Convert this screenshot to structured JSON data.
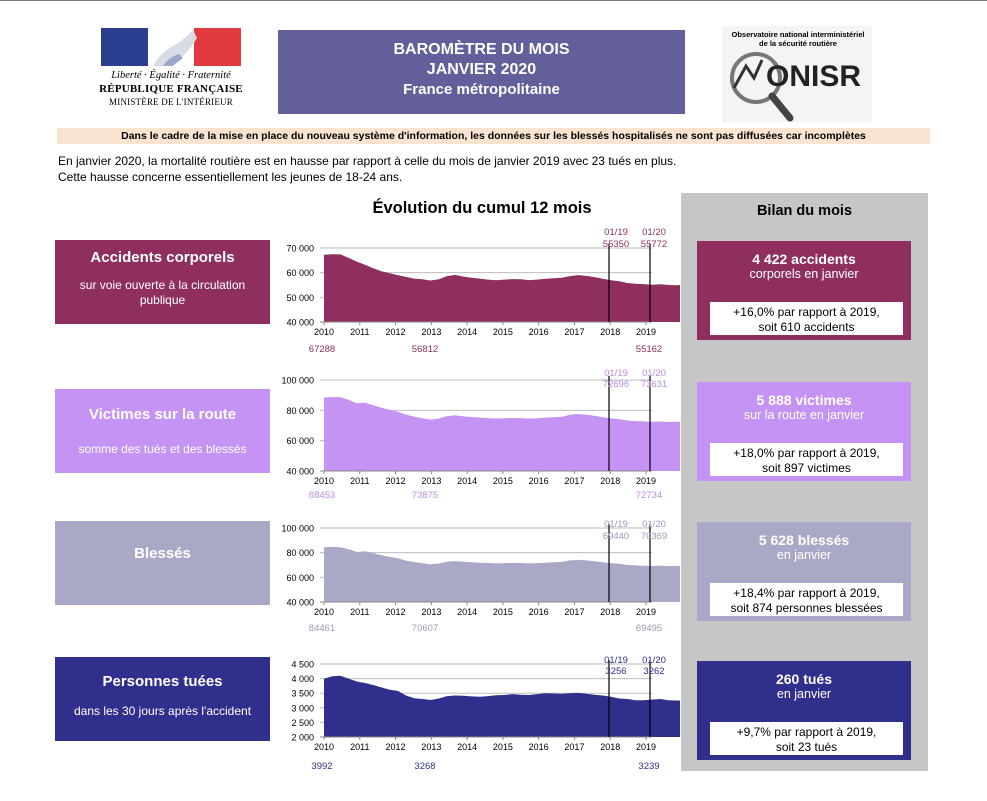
{
  "header": {
    "rf_motto": "Liberté · Égalité · Fraternité",
    "rf_name": "RÉPUBLIQUE FRANÇAISE",
    "rf_ministry": "MINISTÈRE DE L'INTÉRIEUR",
    "title_line1": "BAROMÈTRE DU MOIS",
    "title_line2": "JANVIER 2020",
    "title_line3": "France métropolitaine",
    "onisr_line1": "Observatoire national interministériel",
    "onisr_line2": "de la sécurité routière",
    "onisr_logo_text": "ONISR"
  },
  "notice": "Dans le cadre de la mise en place du nouveau système d'information, les données sur les blessés hospitalisés ne sont pas diffusées car incomplètes",
  "intro_line1": "En janvier 2020, la mortalité routière est en hausse par rapport à celle du mois de janvier 2019 avec 23 tués en plus.",
  "intro_line2": "Cette hausse concerne essentiellement les jeunes de 18-24 ans.",
  "section_title": "Évolution du cumul 12 mois",
  "bilan_title": "Bilan du mois",
  "categories": [
    {
      "name": "Accidents corporels",
      "sub": "sur voie ouverte à la circulation publique",
      "color": "#8e2f5f",
      "result_big": "4 422 accidents",
      "result_sub": "corporels en janvier",
      "comp_line1": "+16,0% par rapport à 2019,",
      "comp_line2": "soit 610 accidents"
    },
    {
      "name": "Victimes sur la route",
      "sub": "somme des tués et des blessés",
      "color": "#c593f4",
      "result_big": "5 888 victimes",
      "result_sub": "sur la route en janvier",
      "comp_line1": "+18,0% par rapport à 2019,",
      "comp_line2": "soit 897 victimes"
    },
    {
      "name": "Blessés",
      "sub": "",
      "color": "#a9a9c7",
      "result_big": "5 628 blessés",
      "result_sub": "en janvier",
      "comp_line1": "+18,4% par rapport à 2019,",
      "comp_line2": "soit 874 personnes blessées"
    },
    {
      "name": "Personnes tuées",
      "sub": "dans les 30 jours après l'accident",
      "color": "#302f8c",
      "result_big": "260 tués",
      "result_sub": "en janvier",
      "comp_line1": "+9,7% par rapport à 2019,",
      "comp_line2": "soit 23 tués"
    }
  ],
  "chart_data": [
    {
      "type": "area",
      "name": "Accidents corporels",
      "x_start": 2010.0,
      "x_end": 2020.083,
      "xticks": [
        "2010",
        "2011",
        "2012",
        "2013",
        "2014",
        "2015",
        "2016",
        "2017",
        "2018",
        "2019"
      ],
      "ylim": [
        40000,
        70000
      ],
      "yticks": [
        "40 000",
        "50 000",
        "60 000",
        "70 000"
      ],
      "ytick_values": [
        40000,
        50000,
        60000,
        70000
      ],
      "values": [
        67288,
        67500,
        67400,
        66000,
        64500,
        63200,
        61800,
        60600,
        59800,
        59000,
        58300,
        57600,
        57300,
        56812,
        57300,
        58600,
        59100,
        58400,
        57900,
        57600,
        57200,
        56900,
        57200,
        57400,
        57300,
        57000,
        57200,
        57500,
        57700,
        57900,
        58600,
        59000,
        58700,
        58200,
        57500,
        56900,
        56500,
        55800,
        55500,
        55350,
        55100,
        55300,
        55000,
        54900,
        55162
      ],
      "marker1_label": "01/19",
      "marker1_value": "55350",
      "marker2_label": "01/20",
      "marker2_value": "55772",
      "start_value": "67288",
      "mid_value": "56812",
      "end_value": "55162",
      "color": "#8e2f5f",
      "label_color": "#8e2f5f"
    },
    {
      "type": "area",
      "name": "Victimes sur la route",
      "x_start": 2010.0,
      "x_end": 2020.083,
      "xticks": [
        "2010",
        "2011",
        "2012",
        "2013",
        "2014",
        "2015",
        "2016",
        "2017",
        "2018",
        "2019"
      ],
      "ylim": [
        40000,
        100000
      ],
      "yticks": [
        "40 000",
        "60 000",
        "80 000",
        "100 000"
      ],
      "ytick_values": [
        40000,
        60000,
        80000,
        100000
      ],
      "values": [
        88453,
        88800,
        88600,
        87000,
        84700,
        85000,
        83300,
        81700,
        80300,
        79100,
        77200,
        75900,
        74800,
        73875,
        74600,
        76200,
        76700,
        76000,
        75600,
        75200,
        74900,
        74600,
        74800,
        75000,
        74900,
        74600,
        74800,
        75200,
        75500,
        75800,
        77100,
        77600,
        77100,
        76400,
        75500,
        74700,
        74200,
        73300,
        72900,
        72696,
        72400,
        72700,
        72300,
        72400,
        72734
      ],
      "marker1_label": "01/19",
      "marker1_value": "72696",
      "marker2_label": "01/20",
      "marker2_value": "73631",
      "start_value": "88453",
      "mid_value": "73875",
      "end_value": "72734",
      "color": "#c593f4",
      "label_color": "#b98ee0"
    },
    {
      "type": "area",
      "name": "Blessés",
      "x_start": 2010.0,
      "x_end": 2020.083,
      "xticks": [
        "2010",
        "2011",
        "2012",
        "2013",
        "2014",
        "2015",
        "2016",
        "2017",
        "2018",
        "2019"
      ],
      "ylim": [
        40000,
        100000
      ],
      "yticks": [
        "40 000",
        "60 000",
        "80 000",
        "100 000"
      ],
      "ytick_values": [
        40000,
        60000,
        80000,
        100000
      ],
      "values": [
        84461,
        84700,
        84400,
        82700,
        80500,
        81200,
        79600,
        78000,
        76600,
        75400,
        73600,
        72400,
        71400,
        70607,
        71200,
        72700,
        73200,
        72600,
        72200,
        71900,
        71600,
        71300,
        71500,
        71700,
        71600,
        71300,
        71500,
        71900,
        72200,
        72500,
        73700,
        74100,
        73700,
        73100,
        72200,
        71500,
        71000,
        70100,
        69700,
        69440,
        69200,
        69500,
        69100,
        69200,
        69495
      ],
      "marker1_label": "01/19",
      "marker1_value": "69440",
      "marker2_label": "01/20",
      "marker2_value": "70369",
      "start_value": "84461",
      "mid_value": "70607",
      "end_value": "69495",
      "color": "#a9a9c7",
      "label_color": "#9a9ab8"
    },
    {
      "type": "area",
      "name": "Personnes tuées",
      "x_start": 2010.0,
      "x_end": 2020.083,
      "xticks": [
        "2010",
        "2011",
        "2012",
        "2013",
        "2014",
        "2015",
        "2016",
        "2017",
        "2018",
        "2019"
      ],
      "ylim": [
        2000,
        4500
      ],
      "yticks": [
        "2 000",
        "2 500",
        "3 000",
        "3 500",
        "4 000",
        "4 500"
      ],
      "ytick_values": [
        2000,
        2500,
        3000,
        3500,
        4000,
        4500
      ],
      "values": [
        3992,
        4080,
        4100,
        4000,
        3900,
        3850,
        3780,
        3700,
        3620,
        3580,
        3420,
        3330,
        3300,
        3268,
        3320,
        3400,
        3420,
        3410,
        3390,
        3380,
        3400,
        3430,
        3440,
        3470,
        3450,
        3440,
        3470,
        3500,
        3490,
        3480,
        3500,
        3510,
        3480,
        3450,
        3420,
        3380,
        3320,
        3300,
        3260,
        3256,
        3280,
        3300,
        3260,
        3250,
        3239
      ],
      "marker1_label": "01/19",
      "marker1_value": "3256",
      "marker2_label": "01/20",
      "marker2_value": "3262",
      "start_value": "3992",
      "mid_value": "3268",
      "end_value": "3239",
      "color": "#302f8c",
      "label_color": "#302f8c"
    }
  ]
}
